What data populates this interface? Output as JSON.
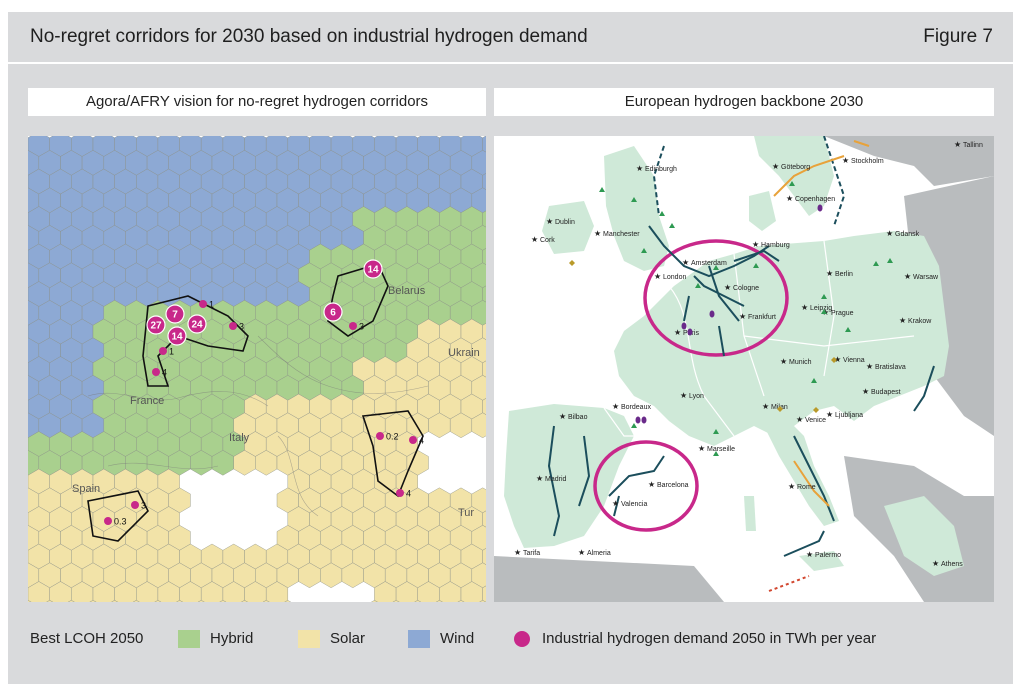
{
  "header": {
    "title": "No-regret corridors for 2030 based on industrial hydrogen demand",
    "figure": "Figure 7"
  },
  "left_panel": {
    "label": "Agora/AFRY vision for no-regret hydrogen corridors",
    "region_labels": [
      "France",
      "Spain",
      "Italy",
      "Belarus",
      "Ukrain",
      "Tur"
    ],
    "demand_values": [
      "27",
      "7",
      "24",
      "14",
      "14",
      "6",
      "3",
      "3",
      "4",
      "1",
      "1",
      "4",
      "0.2",
      "4",
      "3",
      "0.3"
    ]
  },
  "right_panel": {
    "label": "European hydrogen backbone 2030",
    "cities": [
      "Edinburgh",
      "Dublin",
      "Manchester",
      "Cork",
      "London",
      "Amsterdam",
      "Hamburg",
      "Cologne",
      "Frankfurt",
      "Paris",
      "Göteborg",
      "Stockholm",
      "Copenhagen",
      "Tallinn",
      "Gdansk",
      "Berlin",
      "Warsaw",
      "Leipzig",
      "Prague",
      "Krakow",
      "Munich",
      "Vienna",
      "Bratislava",
      "Budapest",
      "Lyon",
      "Milan",
      "Venice",
      "Ljubljana",
      "Bordeaux",
      "Bilbao",
      "Marseille",
      "Madrid",
      "Barcelona",
      "Valencia",
      "Rome",
      "Tarifa",
      "Almeria",
      "Palermo",
      "Athens"
    ]
  },
  "legend": {
    "title": "Best LCOH 2050",
    "hybrid": "Hybrid",
    "solar": "Solar",
    "wind": "Wind",
    "demand": "Industrial hydrogen demand 2050 in TWh per year"
  },
  "colors": {
    "hybrid": "#a9d08e",
    "solar": "#f2e3a8",
    "wind": "#8da9d4",
    "demand": "#c8288a",
    "land": "#cfe9d8",
    "non_eu_land": "#b9bcbe",
    "sea": "#ffffff",
    "pipeline": "#1b4e5c"
  }
}
